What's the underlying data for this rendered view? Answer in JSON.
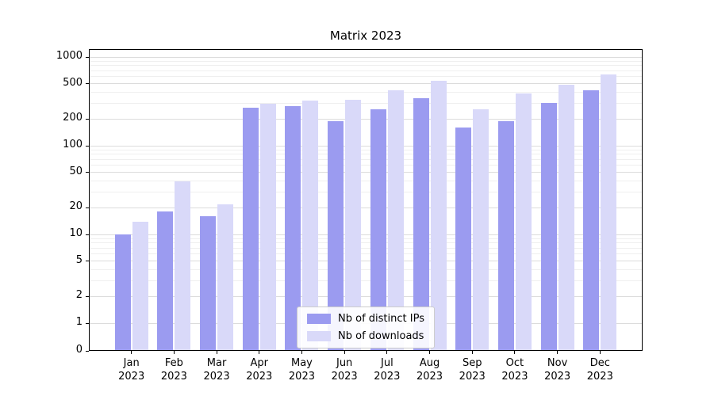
{
  "chart_data": {
    "type": "bar",
    "title": "Matrix 2023",
    "yscale": "symlog",
    "grid": true,
    "legend_position": "lower center",
    "categories": [
      "Jan",
      "Feb",
      "Mar",
      "Apr",
      "May",
      "Jun",
      "Jul",
      "Aug",
      "Sep",
      "Oct",
      "Nov",
      "Dec"
    ],
    "year_label": "2023",
    "series": [
      {
        "name": "Nb of distinct IPs",
        "color": "#9b9bf0",
        "values": [
          10,
          18,
          16,
          270,
          280,
          190,
          255,
          340,
          160,
          190,
          305,
          420
        ]
      },
      {
        "name": "Nb of downloads",
        "color": "#d9d9f9",
        "values": [
          14,
          40,
          22,
          300,
          320,
          330,
          420,
          540,
          260,
          390,
          490,
          630
        ]
      }
    ],
    "yticks": [
      0,
      1,
      2,
      5,
      10,
      20,
      50,
      100,
      200,
      500,
      1000
    ],
    "ylim": [
      0,
      1200
    ],
    "xlabel": "",
    "ylabel": ""
  }
}
